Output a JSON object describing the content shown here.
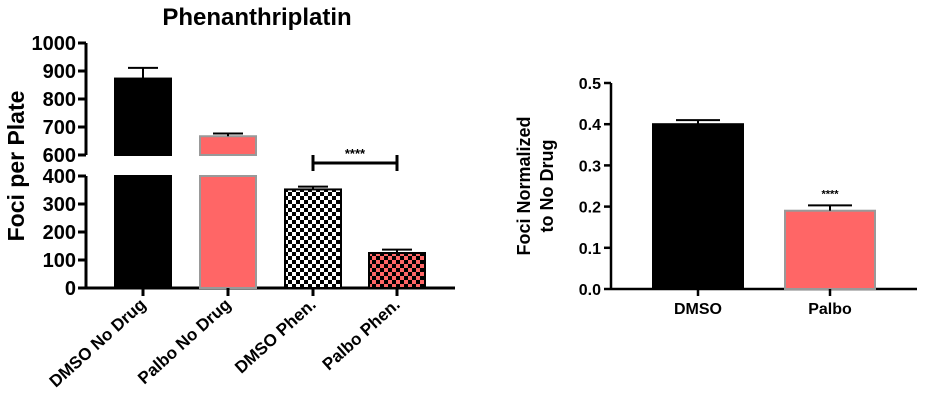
{
  "chart_data": [
    {
      "type": "bar",
      "title": "Phenanthriplatin",
      "xlabel": "",
      "ylabel": "Foci per Plate",
      "ylim": [
        0,
        1000
      ],
      "axis_break": [
        400,
        600
      ],
      "yticks": [
        0,
        100,
        200,
        300,
        400,
        600,
        700,
        800,
        900,
        1000
      ],
      "categories": [
        "DMSO No Drug",
        "Palbo No Drug",
        "DMSO Phen.",
        "Palbo Phen."
      ],
      "values": [
        873,
        667,
        352,
        125
      ],
      "errors": [
        38,
        10,
        10,
        12
      ],
      "fills": [
        "#000000",
        "#ff6666",
        "checker-black",
        "checker-red"
      ],
      "significance": {
        "from": 2,
        "to": 3,
        "label": "****"
      },
      "grid": false
    },
    {
      "type": "bar",
      "title": "",
      "xlabel": "",
      "ylabel_lines": [
        "Foci Normalized",
        "to No Drug"
      ],
      "ylim": [
        0,
        0.5
      ],
      "yticks": [
        "0.0",
        "0.1",
        "0.2",
        "0.3",
        "0.4",
        "0.5"
      ],
      "categories": [
        "DMSO",
        "Palbo"
      ],
      "values": [
        0.4,
        0.19
      ],
      "errors": [
        0.01,
        0.013
      ],
      "fills": [
        "#000000",
        "#ff6666"
      ],
      "significance_label": "****",
      "grid": false
    }
  ]
}
